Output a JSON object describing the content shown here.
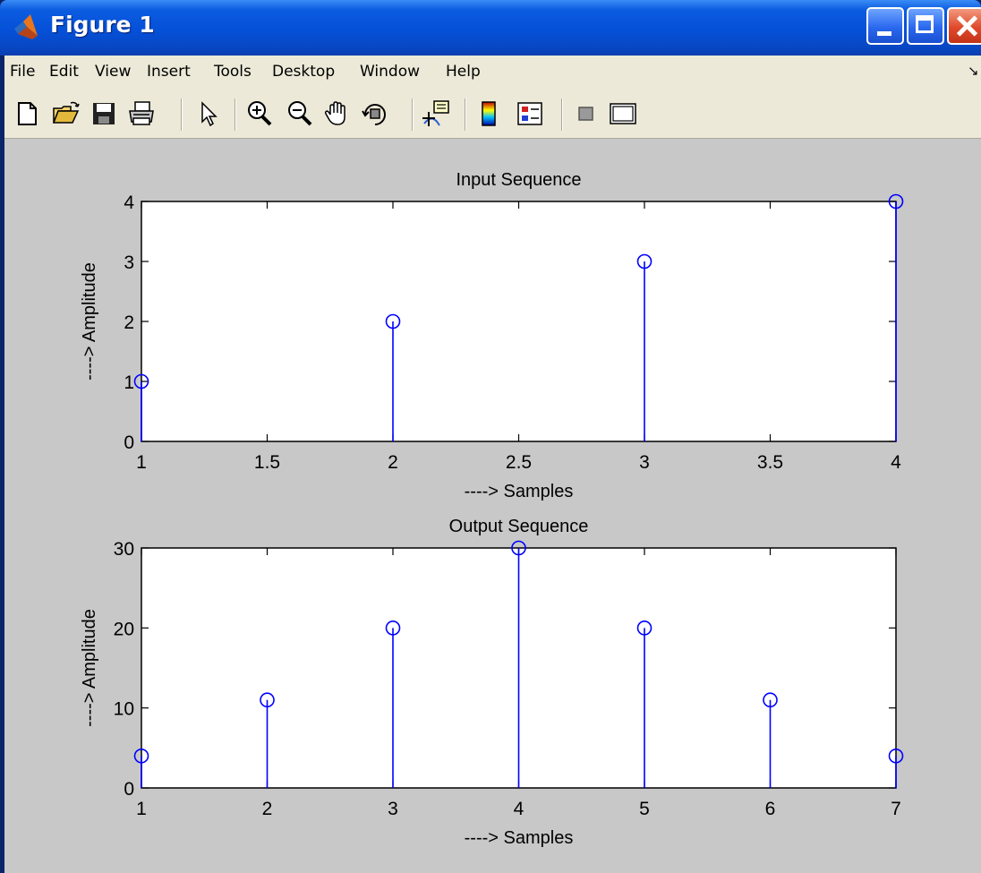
{
  "window": {
    "title": "Figure 1"
  },
  "menu": {
    "items": [
      "File",
      "Edit",
      "View",
      "Insert",
      "Tools",
      "Desktop",
      "Window",
      "Help"
    ]
  },
  "toolbar": {
    "tools": [
      "new-file-icon",
      "open-folder-icon",
      "save-icon",
      "print-icon",
      "pointer-arrow-icon",
      "zoom-in-icon",
      "zoom-out-icon",
      "pan-hand-icon",
      "rotate-3d-icon",
      "data-cursor-icon",
      "colorbar-icon",
      "legend-icon",
      "hide-plot-tools-icon",
      "show-plot-tools-icon"
    ]
  },
  "colors": {
    "stem": "#0000ff",
    "figure_bg": "#c8c8c8",
    "axes_bg": "#ffffff"
  },
  "chart_data": [
    {
      "type": "stem",
      "title": "Input Sequence",
      "xlabel": "----> Samples",
      "ylabel": "----> Amplitude",
      "x": [
        1,
        2,
        3,
        4
      ],
      "y": [
        1,
        2,
        3,
        4
      ],
      "xlim": [
        1,
        4
      ],
      "ylim": [
        0,
        4
      ],
      "xticks": [
        1,
        1.5,
        2,
        2.5,
        3,
        3.5,
        4
      ],
      "xtick_labels": [
        "1",
        "1.5",
        "2",
        "2.5",
        "3",
        "3.5",
        "4"
      ],
      "yticks": [
        0,
        1,
        2,
        3,
        4
      ],
      "ytick_labels": [
        "0",
        "1",
        "2",
        "3",
        "4"
      ],
      "marker": "o",
      "grid": false
    },
    {
      "type": "stem",
      "title": "Output Sequence",
      "xlabel": "----> Samples",
      "ylabel": "----> Amplitude",
      "x": [
        1,
        2,
        3,
        4,
        5,
        6,
        7
      ],
      "y": [
        4,
        11,
        20,
        30,
        20,
        11,
        4
      ],
      "xlim": [
        1,
        7
      ],
      "ylim": [
        0,
        30
      ],
      "xticks": [
        1,
        2,
        3,
        4,
        5,
        6,
        7
      ],
      "xtick_labels": [
        "1",
        "2",
        "3",
        "4",
        "5",
        "6",
        "7"
      ],
      "yticks": [
        0,
        10,
        20,
        30
      ],
      "ytick_labels": [
        "0",
        "10",
        "20",
        "30"
      ],
      "marker": "o",
      "grid": false
    }
  ]
}
